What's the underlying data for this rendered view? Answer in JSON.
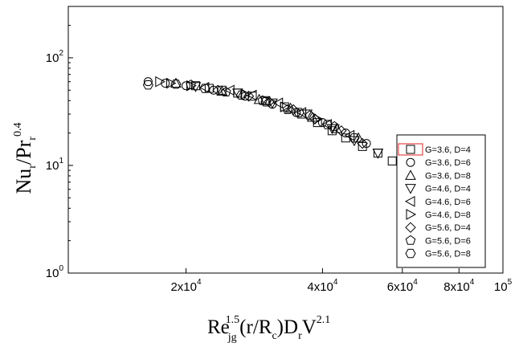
{
  "chart_data": {
    "type": "scatter",
    "xscale": "log",
    "yscale": "log",
    "xlim": [
      11000,
      100000
    ],
    "ylim": [
      1,
      300
    ],
    "grid": false,
    "legend_position": "right",
    "xticks": [
      {
        "value": 20000,
        "mantissa": "2x10",
        "exp": "4"
      },
      {
        "value": 40000,
        "mantissa": "4x10",
        "exp": "4"
      },
      {
        "value": 60000,
        "mantissa": "6x10",
        "exp": "4"
      },
      {
        "value": 80000,
        "mantissa": "8x10",
        "exp": "4"
      },
      {
        "value": 100000,
        "mantissa": "10",
        "exp": "5"
      }
    ],
    "yticks": [
      {
        "value": 1,
        "mantissa": "10",
        "exp": "0"
      },
      {
        "value": 10,
        "mantissa": "10",
        "exp": "1"
      },
      {
        "value": 100,
        "mantissa": "10",
        "exp": "2"
      }
    ],
    "xlabel": {
      "base": "Re",
      "sub": "jg",
      "sup": "1.5",
      "mid": "(r/R",
      "mid_sub": "c",
      "mid2": ")D",
      "mid2_sub": "r",
      "tail": "V",
      "tail_sup": "2.1"
    },
    "ylabel": {
      "base": "Nu",
      "sub1": "r",
      "slash": "/Pr",
      "sub2": "r",
      "sup": "0.4"
    },
    "series": [
      {
        "name": "G=3.6, D=4",
        "marker": "square",
        "points": [
          [
            21000,
            55
          ],
          [
            22500,
            52
          ],
          [
            24000,
            50
          ],
          [
            26000,
            47
          ],
          [
            28000,
            44
          ],
          [
            30000,
            40
          ],
          [
            33000,
            35
          ],
          [
            36000,
            30
          ],
          [
            39000,
            25
          ],
          [
            42000,
            21
          ],
          [
            45000,
            18
          ],
          [
            49000,
            15
          ],
          [
            53000,
            13
          ],
          [
            57000,
            11
          ]
        ]
      },
      {
        "name": "G=3.6, D=6",
        "marker": "circle",
        "points": [
          [
            16500,
            60
          ],
          [
            18000,
            58
          ],
          [
            20000,
            55
          ],
          [
            23000,
            50
          ],
          [
            27000,
            44
          ],
          [
            31000,
            37
          ],
          [
            35000,
            31
          ],
          [
            40000,
            25
          ],
          [
            45000,
            20
          ],
          [
            50000,
            16
          ]
        ]
      },
      {
        "name": "G=3.6, D=8",
        "marker": "triangle-up",
        "points": [
          [
            19000,
            58
          ],
          [
            24000,
            49
          ],
          [
            29000,
            41
          ],
          [
            34000,
            34
          ],
          [
            38000,
            28
          ],
          [
            43000,
            22
          ],
          [
            48000,
            18
          ]
        ]
      },
      {
        "name": "G=4.6, D=4",
        "marker": "triangle-down",
        "points": [
          [
            21000,
            54
          ],
          [
            26000,
            47
          ],
          [
            31000,
            38
          ],
          [
            37000,
            30
          ],
          [
            42000,
            22
          ],
          [
            47000,
            17
          ],
          [
            53000,
            13
          ]
        ]
      },
      {
        "name": "G=4.6, D=6",
        "marker": "triangle-left",
        "points": [
          [
            22000,
            53
          ],
          [
            25000,
            50
          ],
          [
            28000,
            45
          ],
          [
            32000,
            38
          ],
          [
            36000,
            31
          ],
          [
            41000,
            24
          ],
          [
            46000,
            19
          ]
        ]
      },
      {
        "name": "G=4.6, D=8",
        "marker": "triangle-right",
        "points": [
          [
            17500,
            60
          ],
          [
            18500,
            58
          ],
          [
            20500,
            55
          ],
          [
            27000,
            46
          ],
          [
            33000,
            35
          ],
          [
            39000,
            27
          ]
        ]
      },
      {
        "name": "G=5.6, D=4",
        "marker": "diamond",
        "points": [
          [
            23500,
            50
          ],
          [
            27500,
            44
          ],
          [
            30500,
            39
          ],
          [
            34500,
            33
          ],
          [
            38500,
            27
          ],
          [
            44000,
            21
          ],
          [
            49000,
            16
          ]
        ]
      },
      {
        "name": "G=5.6, D=6",
        "marker": "pentagon",
        "points": [
          [
            20500,
            56
          ],
          [
            24500,
            48
          ],
          [
            29500,
            40
          ],
          [
            33500,
            33
          ],
          [
            37500,
            29
          ],
          [
            42500,
            23
          ]
        ]
      },
      {
        "name": "G=5.6, D=8",
        "marker": "hexagon",
        "points": [
          [
            16500,
            56
          ],
          [
            19000,
            57
          ],
          [
            22000,
            52
          ],
          [
            26500,
            45
          ],
          [
            30000,
            39
          ],
          [
            35500,
            31
          ],
          [
            41000,
            24
          ],
          [
            47000,
            18
          ]
        ]
      }
    ]
  }
}
